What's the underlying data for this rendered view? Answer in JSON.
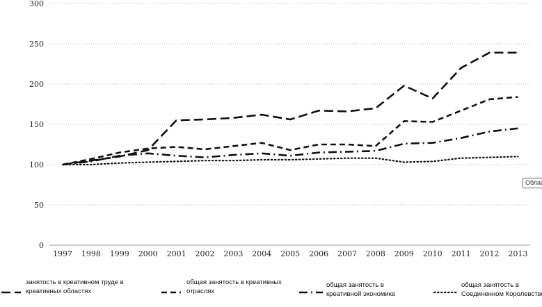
{
  "chart_data": {
    "type": "line",
    "categories": [
      "1997",
      "1998",
      "1999",
      "2000",
      "2001",
      "2002",
      "2003",
      "2004",
      "2005",
      "2006",
      "2007",
      "2008",
      "2009",
      "2010",
      "2011",
      "2012",
      "2013"
    ],
    "ylim": [
      0,
      300
    ],
    "yticks": [
      0,
      50,
      100,
      150,
      200,
      250,
      300
    ],
    "grid": "horizontal-dotted",
    "legend_position": "bottom",
    "series": [
      {
        "name": "занятость в креативном труде в креативных областях",
        "legend_lines": [
          "занятость в креативном труде в",
          "креативных областях"
        ],
        "style": "long-dash",
        "values": [
          100,
          105,
          110,
          118,
          155,
          156,
          158,
          162,
          156,
          167,
          166,
          170,
          198,
          182,
          220,
          239,
          239
        ]
      },
      {
        "name": "общая занятость в креативных отраслях",
        "legend_lines": [
          "общая занятость в креативных",
          "отраслях"
        ],
        "style": "dash",
        "values": [
          100,
          107,
          115,
          120,
          122,
          119,
          123,
          127,
          118,
          125,
          125,
          123,
          154,
          153,
          167,
          181,
          184
        ]
      },
      {
        "name": "общая занятость в креативной экономике",
        "legend_lines": [
          "общая занятость в",
          "креативной экономике"
        ],
        "style": "dash-dot",
        "values": [
          100,
          104,
          111,
          114,
          111,
          109,
          112,
          114,
          111,
          115,
          116,
          117,
          126,
          127,
          133,
          141,
          145
        ]
      },
      {
        "name": "общая занятость в Соединенном Королевстве",
        "legend_lines": [
          "общая занятость в",
          "Соединенном Королевстве"
        ],
        "style": "dotted",
        "values": [
          100,
          100,
          102,
          103,
          104,
          105,
          105,
          106,
          106,
          107,
          108,
          108,
          103,
          104,
          108,
          109,
          110
        ]
      }
    ]
  },
  "tooltip": {
    "text": "Облас"
  },
  "colors": {
    "line": "#111111",
    "grid": "#bdbdbd"
  }
}
